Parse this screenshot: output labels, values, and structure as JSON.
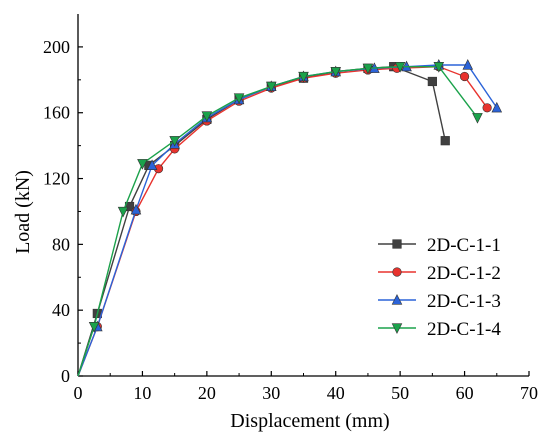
{
  "chart_data": {
    "type": "line",
    "xlabel": "Displacement (mm)",
    "ylabel": "Load (kN)",
    "xlim": [
      0,
      70
    ],
    "ylim": [
      0,
      220
    ],
    "xticks": [
      0,
      10,
      20,
      30,
      40,
      50,
      60,
      70
    ],
    "yticks": [
      0,
      40,
      80,
      120,
      160,
      200
    ],
    "grid": false,
    "legend_position": "bottom-right",
    "series": [
      {
        "name": "2D-C-1-1",
        "color": "#404040",
        "marker": "square",
        "points": [
          [
            0,
            0
          ],
          [
            3,
            38
          ],
          [
            8,
            103
          ],
          [
            11,
            128
          ],
          [
            15,
            140
          ],
          [
            20,
            156
          ],
          [
            25,
            168
          ],
          [
            30,
            176
          ],
          [
            35,
            181
          ],
          [
            40,
            185
          ],
          [
            45,
            187
          ],
          [
            49,
            188
          ],
          [
            55,
            179
          ],
          [
            57,
            143
          ]
        ]
      },
      {
        "name": "2D-C-1-2",
        "color": "#e8332e",
        "marker": "circle",
        "points": [
          [
            0,
            0
          ],
          [
            3,
            30
          ],
          [
            9,
            100
          ],
          [
            12.5,
            126
          ],
          [
            15,
            138
          ],
          [
            20,
            155
          ],
          [
            25,
            167
          ],
          [
            30,
            175
          ],
          [
            35,
            181
          ],
          [
            40,
            184
          ],
          [
            45,
            186
          ],
          [
            49.5,
            187
          ],
          [
            56,
            188
          ],
          [
            60,
            182
          ],
          [
            63.5,
            163
          ]
        ]
      },
      {
        "name": "2D-C-1-3",
        "color": "#2b63d8",
        "marker": "triangle-up",
        "points": [
          [
            0,
            0
          ],
          [
            3,
            30
          ],
          [
            9,
            101
          ],
          [
            11.5,
            128
          ],
          [
            15,
            141
          ],
          [
            20,
            157
          ],
          [
            25,
            168
          ],
          [
            30,
            176
          ],
          [
            35,
            182
          ],
          [
            40,
            185
          ],
          [
            46,
            187
          ],
          [
            51,
            188
          ],
          [
            56,
            189
          ],
          [
            60.5,
            189
          ],
          [
            65,
            163
          ]
        ]
      },
      {
        "name": "2D-C-1-4",
        "color": "#1ba24b",
        "marker": "triangle-down",
        "points": [
          [
            0,
            0
          ],
          [
            2.5,
            30
          ],
          [
            7,
            100
          ],
          [
            10,
            129
          ],
          [
            15,
            143
          ],
          [
            20,
            158
          ],
          [
            25,
            169
          ],
          [
            30,
            176
          ],
          [
            35,
            182
          ],
          [
            40,
            185
          ],
          [
            45,
            187
          ],
          [
            50,
            188
          ],
          [
            56,
            188
          ],
          [
            62,
            157
          ]
        ]
      }
    ]
  }
}
